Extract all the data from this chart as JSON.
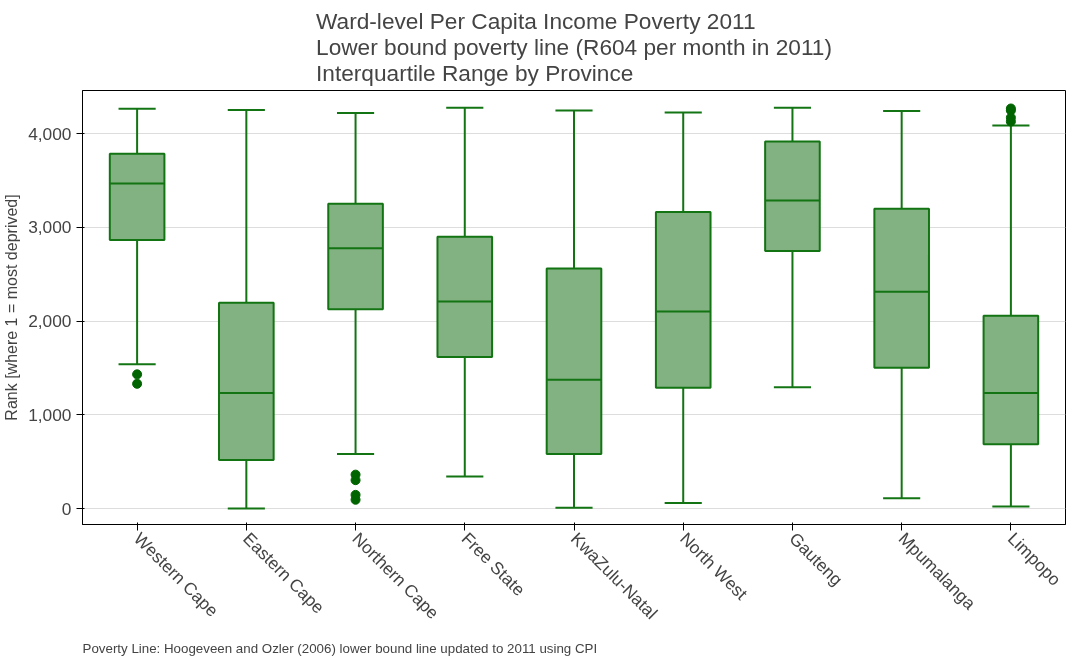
{
  "chart_data": {
    "type": "box",
    "title": "Ward-level Per Capita Income Poverty 2011\nLower bound poverty line (R604 per month in 2011)\nInterquartile Range by Province",
    "ylabel": "Rank [where 1 = most deprived]",
    "categories": [
      "Western Cape",
      "Eastern Cape",
      "Northern Cape",
      "Free State",
      "KwaZulu-Natal",
      "North West",
      "Gauteng",
      "Mpumalanga",
      "Limpopo"
    ],
    "series": [
      {
        "color": "#82b182",
        "boxes": [
          {
            "low": 1540,
            "q1": 2864,
            "median": 3467,
            "q3": 3784,
            "high": 4265,
            "outliers": [
              1432,
              1331
            ]
          },
          {
            "low": 0,
            "q1": 519,
            "median": 1233,
            "q3": 2195,
            "high": 4251
          },
          {
            "low": 582,
            "q1": 2125,
            "median": 2777,
            "q3": 3251,
            "high": 4220,
            "outliers": [
              362,
              303,
              146,
              94
            ]
          },
          {
            "low": 341,
            "q1": 1617,
            "median": 2209,
            "q3": 2899,
            "high": 4275
          },
          {
            "low": 10,
            "q1": 582,
            "median": 1373,
            "q3": 2561,
            "high": 4247
          },
          {
            "low": 59,
            "q1": 1289,
            "median": 2101,
            "q3": 3164,
            "high": 4226
          },
          {
            "low": 1293,
            "q1": 2749,
            "median": 3286,
            "q3": 3916,
            "high": 4275
          },
          {
            "low": 111,
            "q1": 1502,
            "median": 2314,
            "q3": 3199,
            "high": 4240
          },
          {
            "low": 21,
            "q1": 686,
            "median": 1233,
            "q3": 2056,
            "high": 4087,
            "outliers": [
              4268,
              4247,
              4171,
              4129
            ]
          }
        ]
      }
    ],
    "ylim": [
      -170,
      4460
    ],
    "yticks": [
      {
        "value": 0,
        "label": "0"
      },
      {
        "value": 1000,
        "label": "1,000"
      },
      {
        "value": 2000,
        "label": "2,000"
      },
      {
        "value": 3000,
        "label": "3,000"
      },
      {
        "value": 4000,
        "label": "4,000"
      }
    ],
    "grid": "y",
    "annotations": [
      "Poverty Line: Hoogeveen and Ozler (2006) lower bound line updated to 2011 using CPI"
    ]
  }
}
